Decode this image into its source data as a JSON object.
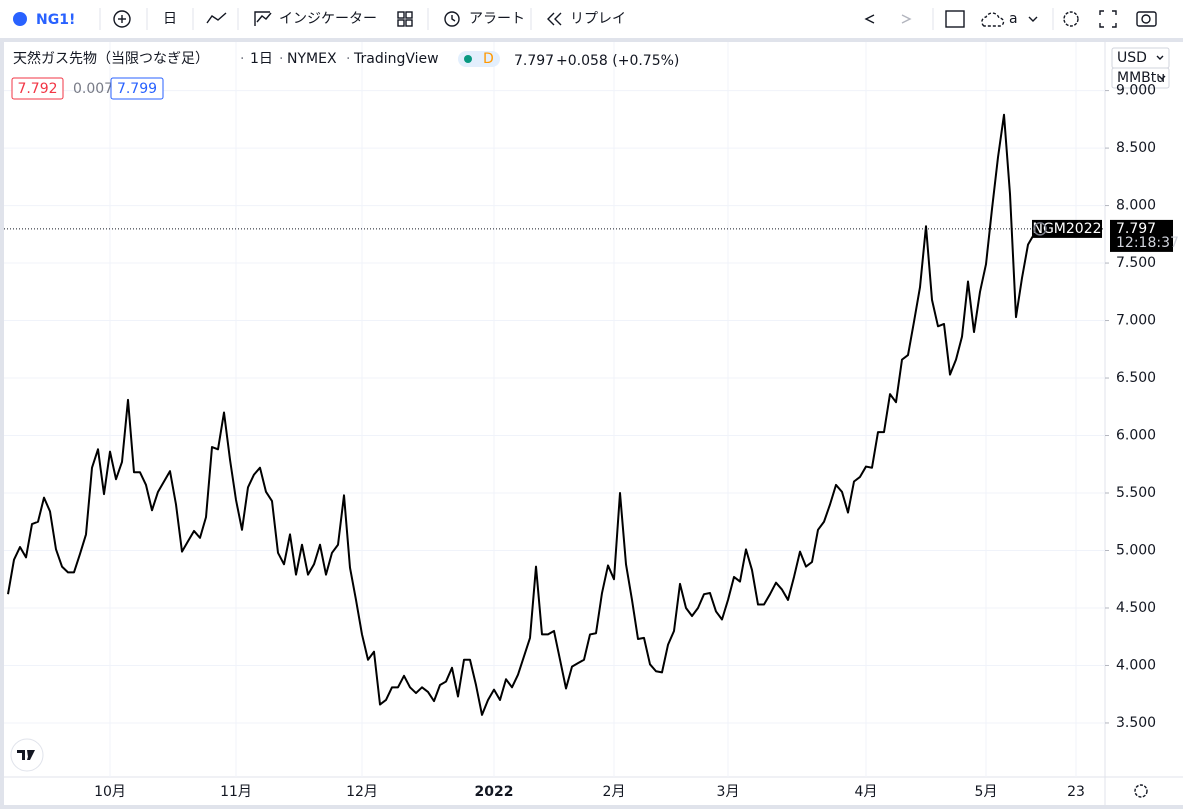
{
  "toolbar": {
    "symbol": "NG1!",
    "interval": "日",
    "indicators": "インジケーター",
    "alert": "アラート",
    "replay": "リプレイ",
    "layout_name": "a"
  },
  "legend": {
    "title": "天然ガス先物（当限つなぎ足）",
    "interval": "1日",
    "exchange": "NYMEX",
    "source": "TradingView",
    "badge": "D",
    "price": "7.797",
    "change": "+0.058 (+0.75%)",
    "bid": "7.792",
    "spread": "0.007",
    "ask": "7.799"
  },
  "scale": {
    "currency": "USD",
    "unit": "MMBtu"
  },
  "chart_data": {
    "type": "line",
    "categories": [
      null,
      null,
      null,
      null,
      null,
      null,
      null,
      null,
      null,
      null,
      null,
      null,
      null,
      null,
      null,
      null,
      null,
      "10月",
      null,
      null,
      null,
      null,
      null,
      null,
      null,
      null,
      null,
      null,
      null,
      null,
      null,
      null,
      null,
      null,
      null,
      null,
      null,
      null,
      "11月",
      null,
      null,
      null,
      null,
      null,
      null,
      null,
      null,
      null,
      null,
      null,
      null,
      null,
      null,
      null,
      null,
      null,
      null,
      null,
      null,
      "12月",
      null,
      null,
      null,
      null,
      null,
      null,
      null,
      null,
      null,
      null,
      null,
      null,
      null,
      null,
      null,
      null,
      null,
      null,
      null,
      null,
      null,
      "2022",
      null,
      null,
      null,
      null,
      null,
      null,
      null,
      null,
      null,
      null,
      null,
      null,
      null,
      null,
      null,
      null,
      null,
      null,
      null,
      "2月",
      null,
      null,
      null,
      null,
      null,
      null,
      null,
      null,
      null,
      null,
      null,
      null,
      null,
      null,
      null,
      null,
      null,
      null,
      "3月",
      null,
      null,
      null,
      null,
      null,
      null,
      null,
      null,
      null,
      null,
      null,
      null,
      null,
      null,
      null,
      null,
      null,
      null,
      null,
      null,
      null,
      null,
      "4月",
      null,
      null,
      null,
      null,
      null,
      null,
      null,
      null,
      null,
      null,
      null,
      null,
      null,
      null,
      null,
      null,
      null,
      null,
      null,
      "5月",
      null,
      null,
      null,
      null,
      null,
      null,
      null,
      null,
      null,
      null,
      null,
      null,
      null,
      null,
      "23"
    ],
    "series": [
      {
        "name": "NGM2022",
        "color": "#000000",
        "values": [
          4.62,
          4.92,
          5.03,
          4.94,
          5.23,
          5.25,
          5.46,
          5.34,
          5.01,
          4.86,
          4.81,
          4.81,
          4.97,
          5.14,
          5.72,
          5.88,
          5.49,
          5.86,
          5.62,
          5.77,
          6.31,
          5.68,
          5.68,
          5.57,
          5.35,
          5.51,
          5.6,
          5.69,
          5.4,
          4.99,
          5.08,
          5.17,
          5.11,
          5.29,
          5.9,
          5.88,
          6.2,
          5.79,
          5.44,
          5.18,
          5.55,
          5.66,
          5.72,
          5.51,
          5.43,
          4.98,
          4.88,
          5.14,
          4.79,
          5.05,
          4.79,
          4.88,
          5.05,
          4.79,
          4.98,
          5.05,
          5.48,
          4.85,
          4.57,
          4.27,
          4.05,
          4.12,
          3.66,
          3.7,
          3.81,
          3.81,
          3.91,
          3.81,
          3.76,
          3.81,
          3.77,
          3.69,
          3.83,
          3.86,
          3.98,
          3.73,
          4.05,
          4.05,
          3.83,
          3.57,
          3.7,
          3.79,
          3.7,
          3.88,
          3.81,
          3.92,
          4.08,
          4.24,
          4.86,
          4.27,
          4.27,
          4.3,
          4.05,
          3.8,
          3.99,
          4.02,
          4.05,
          4.27,
          4.28,
          4.63,
          4.87,
          4.75,
          5.5,
          4.88,
          4.57,
          4.23,
          4.24,
          4.01,
          3.95,
          3.94,
          4.18,
          4.3,
          4.71,
          4.5,
          4.43,
          4.5,
          4.62,
          4.63,
          4.47,
          4.4,
          4.57,
          4.77,
          4.73,
          5.01,
          4.83,
          4.53,
          4.53,
          4.62,
          4.72,
          4.66,
          4.57,
          4.77,
          4.99,
          4.86,
          4.9,
          5.18,
          5.25,
          5.4,
          5.57,
          5.51,
          5.33,
          5.6,
          5.64,
          5.73,
          5.72,
          6.03,
          6.03,
          6.36,
          6.29,
          6.66,
          6.7,
          6.99,
          7.29,
          7.82,
          7.18,
          6.95,
          6.97,
          6.53,
          6.66,
          6.86,
          7.34,
          6.9,
          7.25,
          7.49,
          7.97,
          8.42,
          8.79,
          8.1,
          7.03,
          7.37,
          7.66,
          7.75,
          7.8,
          null,
          null,
          null,
          null,
          null,
          null
        ]
      }
    ],
    "ylim": [
      3.03,
      9.44
    ],
    "yticks": [
      {
        "value": 3.5,
        "label": "3.500"
      },
      {
        "value": 4,
        "label": "4.000"
      },
      {
        "value": 4.5,
        "label": "4.500"
      },
      {
        "value": 5,
        "label": "5.000"
      },
      {
        "value": 5.5,
        "label": "5.500"
      },
      {
        "value": 6,
        "label": "6.000"
      },
      {
        "value": 6.5,
        "label": "6.500"
      },
      {
        "value": 7,
        "label": "7.000"
      },
      {
        "value": 7.5,
        "label": "7.500"
      },
      {
        "value": 8,
        "label": "8.000"
      },
      {
        "value": 8.5,
        "label": "8.500"
      },
      {
        "value": 9,
        "label": "9.000"
      }
    ],
    "grid": true,
    "last_price": 7.797,
    "countdown": "12:18:37"
  }
}
